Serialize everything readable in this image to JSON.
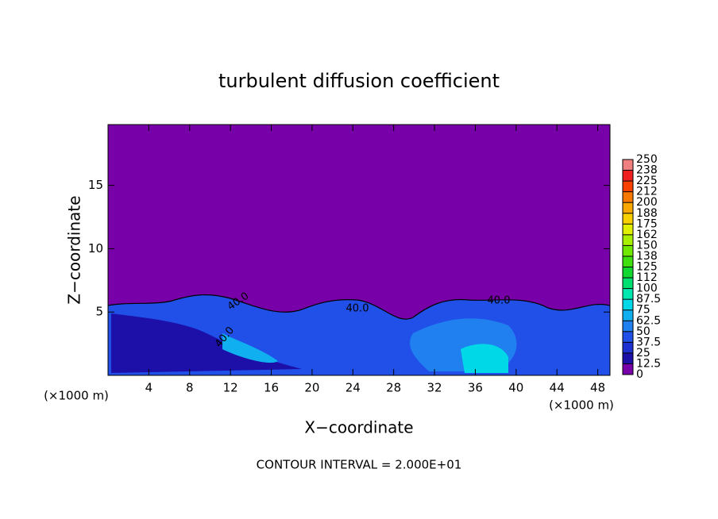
{
  "chart_data": {
    "type": "contour",
    "title": "turbulent diffusion coefficient",
    "xlabel": "X−coordinate",
    "ylabel": "Z−coordinate",
    "x_unit": "(×1000 m)",
    "xlim": [
      0,
      49.2
    ],
    "ylim": [
      0,
      19.8
    ],
    "xticks": [
      4,
      8,
      12,
      16,
      20,
      24,
      28,
      32,
      36,
      40,
      44,
      48
    ],
    "yticks": [
      5,
      10,
      15
    ],
    "colorbar": {
      "levels": [
        0,
        12.5,
        25,
        37.5,
        50,
        62.5,
        75,
        87.5,
        100,
        {
          "value": 112.5,
          "label": "112"
        },
        125,
        {
          "value": 137.5,
          "label": "138"
        },
        150,
        {
          "value": 162.5,
          "label": "162"
        },
        175,
        {
          "value": 187.5,
          "label": "188"
        },
        200,
        {
          "value": 212.5,
          "label": "212"
        },
        225,
        {
          "value": 237.5,
          "label": "238"
        },
        250
      ],
      "colors": [
        "#7800a8",
        "#1c10a8",
        "#1f30d0",
        "#2050e8",
        "#2080f0",
        "#10b0f0",
        "#00d8e8",
        "#00e8b0",
        "#00e070",
        "#10d830",
        "#40e010",
        "#70e800",
        "#a8f000",
        "#e0f000",
        "#f8d000",
        "#f8a800",
        "#f87800",
        "#f84000",
        "#f02020",
        "#f08080"
      ]
    },
    "contour_labels": [
      "40.0",
      "40.0",
      "40.0",
      "40.0"
    ],
    "footer": "CONTOUR INTERVAL = 2.000E+01"
  }
}
